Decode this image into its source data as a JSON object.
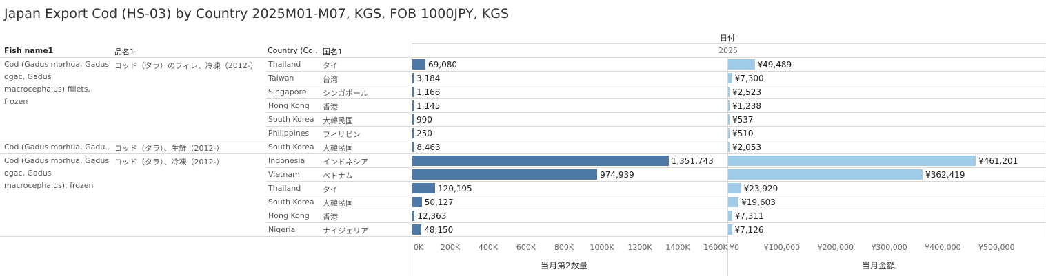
{
  "title": "Japan Export Cod (HS-03) by Country 2025M01-M07, KGS, FOB 1000JPY, KGS",
  "headers": {
    "fish_name": "Fish name1",
    "item_name": "品名1",
    "country": "Country (Co..",
    "country_jp": "国名1",
    "date_field": "日付",
    "year": "2025"
  },
  "groups": [
    {
      "fish": "Cod (Gadus morhua, Gadus ogac, Gadus macrocephalus) fillets, frozen",
      "item": "コッド（タラ）のフィレ、冷凍（2012-）"
    },
    {
      "fish": "Cod (Gadus morhua, Gadu..",
      "item": "コッド（タラ）、生鮮（2012-）"
    },
    {
      "fish": "Cod (Gadus morhua, Gadus ogac, Gadus macrocephalus), frozen",
      "item": "コッド（タラ）、冷凍（2012-）"
    }
  ],
  "chart_data": {
    "type": "bar",
    "orientation": "horizontal",
    "rows": [
      {
        "group": 0,
        "country": "Thailand",
        "country_jp": "タイ"
      },
      {
        "group": 0,
        "country": "Taiwan",
        "country_jp": "台湾"
      },
      {
        "group": 0,
        "country": "Singapore",
        "country_jp": "シンガポール"
      },
      {
        "group": 0,
        "country": "Hong Kong",
        "country_jp": "香港"
      },
      {
        "group": 0,
        "country": "South Korea",
        "country_jp": "大韓民国"
      },
      {
        "group": 0,
        "country": "Philippines",
        "country_jp": "フィリピン"
      },
      {
        "group": 1,
        "country": "South Korea",
        "country_jp": "大韓民国"
      },
      {
        "group": 2,
        "country": "Indonesia",
        "country_jp": "インドネシア"
      },
      {
        "group": 2,
        "country": "Vietnam",
        "country_jp": "ベトナム"
      },
      {
        "group": 2,
        "country": "Thailand",
        "country_jp": "タイ"
      },
      {
        "group": 2,
        "country": "South Korea",
        "country_jp": "大韓民国"
      },
      {
        "group": 2,
        "country": "Hong Kong",
        "country_jp": "香港"
      },
      {
        "group": 2,
        "country": "Nigeria",
        "country_jp": "ナイジェリア"
      }
    ],
    "series": [
      {
        "name": "当月第2数量",
        "values": [
          69080,
          3184,
          1168,
          1145,
          990,
          250,
          8463,
          1351743,
          974939,
          120195,
          50127,
          12363,
          48150
        ],
        "labels": [
          "69,080",
          "3,184",
          "1,168",
          "1,145",
          "990",
          "250",
          "8,463",
          "1,351,743",
          "974,939",
          "120,195",
          "50,127",
          "12,363",
          "48,150"
        ],
        "color": "#4e79a7",
        "xlim": [
          0,
          1600000
        ],
        "ticks": [
          0,
          200000,
          400000,
          600000,
          800000,
          1000000,
          1200000,
          1400000,
          1600000
        ],
        "tick_labels": [
          "0K",
          "200K",
          "400K",
          "600K",
          "800K",
          "1000K",
          "1200K",
          "1400K",
          "1600K"
        ],
        "axis_title": "当月第2数量"
      },
      {
        "name": "当月金額",
        "values": [
          49489,
          7300,
          2523,
          1238,
          537,
          510,
          2053,
          461201,
          362419,
          23929,
          19603,
          7311,
          7126
        ],
        "labels": [
          "¥49,489",
          "¥7,300",
          "¥2,523",
          "¥1,238",
          "¥537",
          "¥510",
          "¥2,053",
          "¥461,201",
          "¥362,419",
          "¥23,929",
          "¥19,603",
          "¥7,311",
          "¥7,126"
        ],
        "color": "#a0cbe8",
        "xlim": [
          0,
          560000
        ],
        "ticks": [
          0,
          100000,
          200000,
          300000,
          400000,
          500000
        ],
        "tick_labels": [
          "¥0",
          "¥100,000",
          "¥200,000",
          "¥300,000",
          "¥400,000",
          "¥500,000"
        ],
        "axis_title": "当月金額"
      }
    ]
  }
}
